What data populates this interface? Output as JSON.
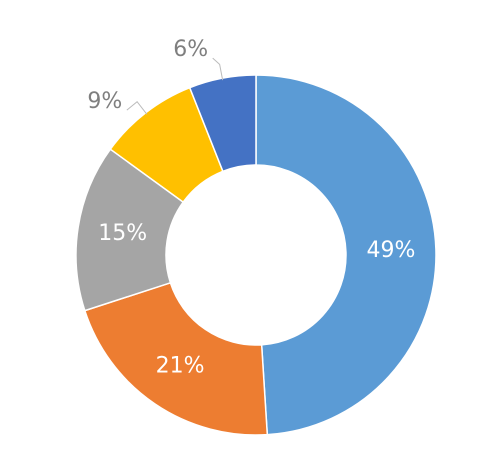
{
  "chart_data": {
    "type": "donut",
    "values": [
      49,
      21,
      15,
      9,
      6
    ],
    "value_labels": [
      "49%",
      "21%",
      "15%",
      "9%",
      "6%"
    ],
    "colors": [
      "#5b9bd5",
      "#ed7d31",
      "#a5a5a5",
      "#ffc000",
      "#4472c4"
    ]
  }
}
